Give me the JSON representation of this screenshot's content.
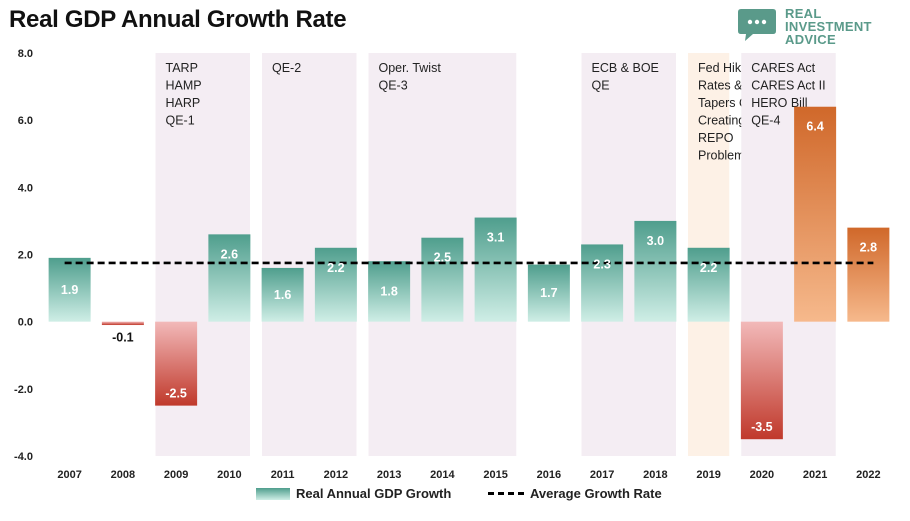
{
  "header": {
    "title": "Real GDP Annual Growth Rate"
  },
  "logo": {
    "lines": [
      "REAL",
      "INVESTMENT",
      "ADVICE"
    ],
    "icon": "speech-bubble-icon",
    "color": "#5a9a8a"
  },
  "colors": {
    "positive_top": "#4f9e8d",
    "positive_bottom": "#cfeee6",
    "negative_top": "#f2b9b9",
    "negative_bottom": "#c0392b",
    "orange_top": "#d0682a",
    "orange_bottom": "#f6b98c",
    "band": "#f4edf3",
    "band_highlight": "#fdf1e6",
    "avg_line": "#000000"
  },
  "chart_data": {
    "type": "bar",
    "categories": [
      "2007",
      "2008",
      "2009",
      "2010",
      "2011",
      "2012",
      "2013",
      "2014",
      "2015",
      "2016",
      "2017",
      "2018",
      "2019",
      "2020",
      "2021",
      "2022"
    ],
    "series": [
      {
        "name": "Real Annual GDP Growth",
        "values": [
          1.9,
          -0.1,
          -2.5,
          2.6,
          1.6,
          2.2,
          1.8,
          2.5,
          3.1,
          1.7,
          2.3,
          3.0,
          2.2,
          -3.5,
          6.4,
          2.8
        ]
      },
      {
        "name": "Average Growth Rate",
        "type": "line",
        "style": "dashed",
        "values": [
          1.75,
          1.75,
          1.75,
          1.75,
          1.75,
          1.75,
          1.75,
          1.75,
          1.75,
          1.75,
          1.75,
          1.75,
          1.75,
          1.75,
          1.75,
          1.75
        ]
      }
    ],
    "data_labels": [
      "1.9",
      "-0.1",
      "-2.5",
      "2.6",
      "1.6",
      "2.2",
      "1.8",
      "2.5",
      "3.1",
      "1.7",
      "2.3",
      "3.0",
      "2.2",
      "-3.5",
      "6.4",
      "2.8"
    ],
    "y_ticks": [
      "8.0",
      "6.0",
      "4.0",
      "2.0",
      "0.0",
      "-2.0",
      "-4.0"
    ],
    "ylim": [
      -4,
      8
    ],
    "legend_position": "bottom",
    "grid": false,
    "annotations": [
      {
        "from": "2009",
        "to": "2010",
        "lines": [
          "TARP",
          "HAMP",
          "HARP",
          "QE-1"
        ]
      },
      {
        "from": "2011",
        "to": "2012",
        "lines": [
          "QE-2"
        ]
      },
      {
        "from": "2013",
        "to": "2015",
        "lines": [
          "Oper. Twist",
          "QE-3"
        ]
      },
      {
        "from": "2017",
        "to": "2018",
        "lines": [
          "ECB & BOE",
          "QE"
        ]
      },
      {
        "from": "2019",
        "to": "2019",
        "lines": [
          "Fed Hikes",
          "Rates &",
          "Tapers QE",
          "Creating",
          "REPO",
          "Problem"
        ],
        "highlight": true
      },
      {
        "from": "2020",
        "to": "2021",
        "lines": [
          "CARES Act",
          "CARES Act II",
          "HERO Bill",
          "QE-4"
        ]
      }
    ]
  }
}
